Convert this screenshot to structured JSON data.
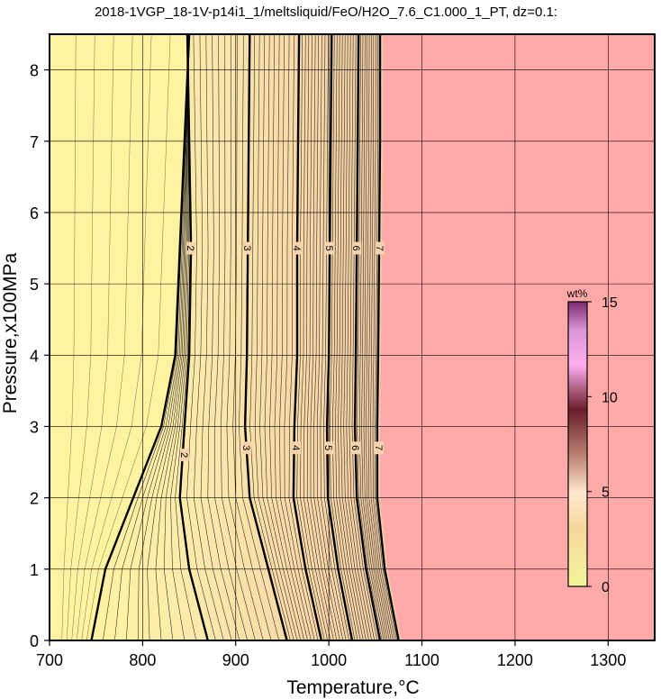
{
  "chart_data": {
    "type": "contour",
    "title": "2018-1VGP_18-1V-p14i1_1/meltsliquid/FeO/H2O_7.6_C1.000_1_PT, dz=0.1:",
    "xlabel": "Temperature,°C",
    "ylabel": "Pressure,x100MPa",
    "xlim": [
      700,
      1350
    ],
    "ylim": [
      0,
      8.5
    ],
    "xticks": [
      700,
      800,
      900,
      1000,
      1100,
      1200,
      1300
    ],
    "yticks": [
      0,
      1,
      2,
      3,
      4,
      5,
      6,
      7,
      8
    ],
    "grid": true,
    "contour_interval": 0.1,
    "annotated_interval": 1,
    "region_above_liquidus": {
      "from_temperature_at_top": 1055,
      "fill": "#ffa9a9"
    },
    "bold_contours": [
      {
        "level": "1",
        "points": [
          [
            850,
            8.5
          ],
          [
            845,
            7.0
          ],
          [
            840,
            5.5
          ],
          [
            835,
            4.0
          ],
          [
            820,
            3.0
          ],
          [
            790,
            2.0
          ],
          [
            760,
            1.0
          ],
          [
            745,
            0
          ]
        ],
        "labels_at": []
      },
      {
        "level": "2",
        "points": [
          [
            848,
            8.5
          ],
          [
            850,
            7.0
          ],
          [
            852,
            5.5
          ],
          [
            850,
            4.0
          ],
          [
            845,
            3.0
          ],
          [
            840,
            2.0
          ],
          [
            850,
            1.0
          ],
          [
            870,
            0
          ]
        ],
        "labels_at": [
          [
            852,
            5.5
          ],
          [
            845,
            2.6
          ]
        ]
      },
      {
        "level": "3",
        "points": [
          [
            915,
            8.5
          ],
          [
            914,
            7.0
          ],
          [
            913,
            5.5
          ],
          [
            912,
            4.0
          ],
          [
            910,
            3.0
          ],
          [
            915,
            2.0
          ],
          [
            935,
            1.0
          ],
          [
            955,
            0
          ]
        ],
        "labels_at": [
          [
            913,
            5.5
          ],
          [
            912,
            2.7
          ]
        ]
      },
      {
        "level": "4",
        "points": [
          [
            968,
            8.5
          ],
          [
            967,
            7.0
          ],
          [
            966,
            5.5
          ],
          [
            966,
            4.0
          ],
          [
            963,
            3.0
          ],
          [
            962,
            2.0
          ],
          [
            975,
            1.0
          ],
          [
            992,
            0
          ]
        ],
        "labels_at": [
          [
            966,
            5.5
          ],
          [
            965,
            2.7
          ]
        ]
      },
      {
        "level": "5",
        "points": [
          [
            1003,
            8.5
          ],
          [
            1002,
            7.0
          ],
          [
            1001,
            5.5
          ],
          [
            1000,
            4.0
          ],
          [
            998,
            3.0
          ],
          [
            999,
            2.0
          ],
          [
            1010,
            1.0
          ],
          [
            1025,
            0
          ]
        ],
        "labels_at": [
          [
            1001,
            5.5
          ],
          [
            1000,
            2.7
          ]
        ]
      },
      {
        "level": "6",
        "points": [
          [
            1032,
            8.5
          ],
          [
            1031,
            7.0
          ],
          [
            1030,
            5.5
          ],
          [
            1029,
            4.0
          ],
          [
            1028,
            3.0
          ],
          [
            1030,
            2.0
          ],
          [
            1040,
            1.0
          ],
          [
            1055,
            0
          ]
        ],
        "labels_at": [
          [
            1030,
            5.5
          ],
          [
            1029,
            2.7
          ]
        ]
      },
      {
        "level": "7",
        "points": [
          [
            1055,
            8.5
          ],
          [
            1055,
            7.0
          ],
          [
            1054,
            5.5
          ],
          [
            1053,
            4.0
          ],
          [
            1052,
            3.0
          ],
          [
            1052,
            2.0
          ],
          [
            1060,
            1.0
          ],
          [
            1075,
            0
          ]
        ],
        "labels_at": [
          [
            1055,
            5.5
          ],
          [
            1054,
            2.7
          ]
        ]
      }
    ],
    "colorbar": {
      "unit": "wt%",
      "range": [
        0,
        15
      ],
      "ticks": [
        0,
        5,
        10,
        15
      ]
    }
  },
  "colors": {
    "background": "#ffffff",
    "low": "#fff2a0",
    "mid": "#f6d0a0",
    "high": "#d49c95",
    "liquidus_fill": "#ffa9a9",
    "grid": "#000000"
  }
}
